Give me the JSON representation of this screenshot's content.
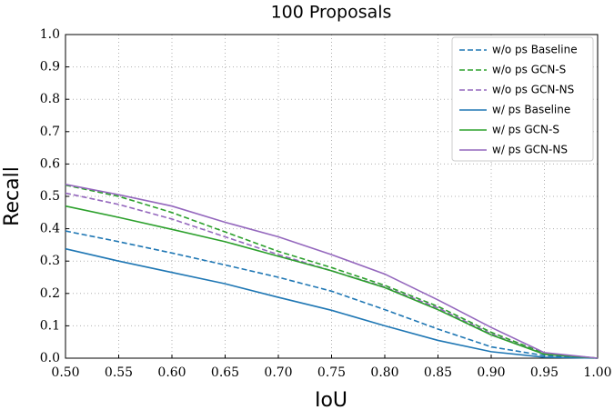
{
  "chart_data": {
    "type": "line",
    "title": "100 Proposals",
    "x_label": "IoU",
    "y_label": "Recall",
    "x": [
      0.5,
      0.55,
      0.6,
      0.65,
      0.7,
      0.75,
      0.8,
      0.85,
      0.9,
      0.95,
      1.0
    ],
    "series": [
      {
        "name": "w/o ps Baseline",
        "color": "#1f77b4",
        "dashed": true,
        "values": [
          0.393,
          0.36,
          0.325,
          0.288,
          0.25,
          0.207,
          0.15,
          0.09,
          0.035,
          0.008,
          0
        ]
      },
      {
        "name": "w/o ps GCN-S",
        "color": "#2ca02c",
        "dashed": true,
        "values": [
          0.535,
          0.5,
          0.45,
          0.39,
          0.33,
          0.28,
          0.225,
          0.16,
          0.08,
          0.015,
          0
        ]
      },
      {
        "name": "w/o ps GCN-NS",
        "color": "#9467bd",
        "dashed": true,
        "values": [
          0.51,
          0.475,
          0.43,
          0.375,
          0.32,
          0.27,
          0.22,
          0.155,
          0.075,
          0.012,
          0
        ]
      },
      {
        "name": "w/ ps Baseline",
        "color": "#1f77b4",
        "dashed": false,
        "values": [
          0.338,
          0.3,
          0.265,
          0.23,
          0.188,
          0.148,
          0.1,
          0.055,
          0.02,
          0.003,
          0
        ]
      },
      {
        "name": "w/ ps GCN-S",
        "color": "#2ca02c",
        "dashed": false,
        "values": [
          0.47,
          0.435,
          0.398,
          0.36,
          0.315,
          0.27,
          0.218,
          0.15,
          0.072,
          0.012,
          0
        ]
      },
      {
        "name": "w/ ps GCN-NS",
        "color": "#9467bd",
        "dashed": false,
        "values": [
          0.537,
          0.505,
          0.47,
          0.42,
          0.375,
          0.32,
          0.26,
          0.18,
          0.095,
          0.017,
          0
        ]
      }
    ],
    "xlim": [
      0.5,
      1.0
    ],
    "xticks": [
      {
        "value": 0.5,
        "label": "0.50"
      },
      0.55,
      {
        "value": 0.6,
        "label": "0.60"
      },
      0.65,
      {
        "value": 0.7,
        "label": "0.70"
      },
      0.75,
      {
        "value": 0.8,
        "label": "0.80"
      },
      0.85,
      {
        "value": 0.9,
        "label": "0.90"
      },
      0.95,
      {
        "value": 1.0,
        "label": "1.00"
      }
    ],
    "ylim": [
      0,
      1.0
    ],
    "yticks": [
      {
        "value": 0,
        "label": "0.0"
      },
      0.1,
      0.2,
      0.3,
      0.4,
      0.5,
      0.6,
      0.7,
      0.8,
      0.9,
      {
        "value": 1.0,
        "label": "1.0"
      }
    ],
    "grid": true,
    "legend": "upper right"
  }
}
